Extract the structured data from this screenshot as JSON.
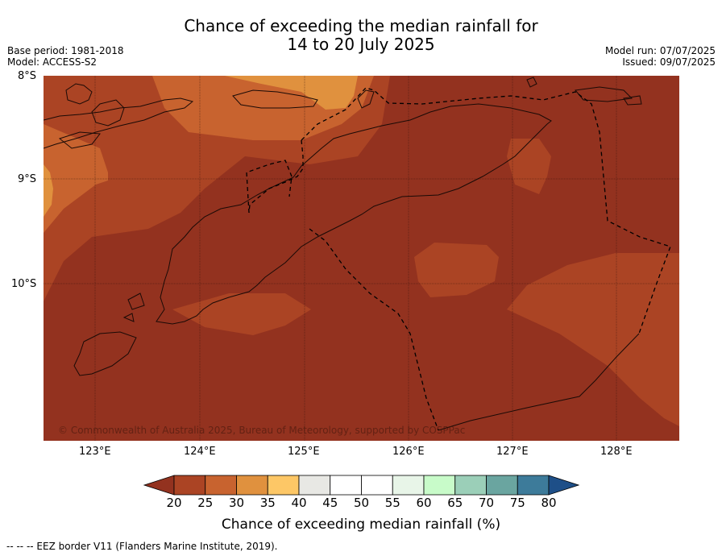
{
  "header": {
    "title_line1": "Chance of exceeding the median rainfall for",
    "title_line2": "14 to 20 July 2025",
    "base_period": "Base period: 1981-2018",
    "model": "Model: ACCESS-S2",
    "model_run": "Model run: 07/07/2025",
    "issued": "Issued: 09/07/2025"
  },
  "map": {
    "lat_labels": [
      "8°S",
      "9°S",
      "10°S"
    ],
    "lon_labels": [
      "123°E",
      "124°E",
      "125°E",
      "126°E",
      "127°E",
      "128°E"
    ],
    "copyright": "© Commonwealth of Australia 2025, Bureau of Meteorology, supported by COSPPac"
  },
  "colorbar": {
    "ticks": [
      "20",
      "25",
      "30",
      "35",
      "40",
      "45",
      "50",
      "55",
      "60",
      "65",
      "70",
      "75",
      "80"
    ],
    "colors": [
      "#93321f",
      "#ab4424",
      "#c8632f",
      "#e0913e",
      "#fdc766",
      "#e8e8e4",
      "#ffffff",
      "#ffffff",
      "#e8f5e8",
      "#c8fbc9",
      "#9bcfb8",
      "#6aa5a0",
      "#3d7b9a",
      "#1e4f88"
    ],
    "label": "Chance of exceeding median rainfall (%)"
  },
  "footnote": "--  --  -- EEZ border V11 (Flanders Marine Institute, 2019)."
}
